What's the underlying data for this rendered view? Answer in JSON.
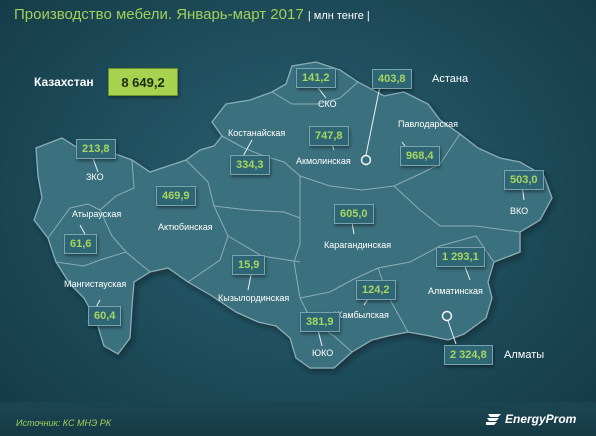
{
  "header": {
    "title": "Производство мебели. Январь-март 2017",
    "unit": "| млн тенге |"
  },
  "total": {
    "label": "Казахстан",
    "value": "8 649,2"
  },
  "cities": {
    "astana": {
      "label": "Астана",
      "value": "403,8"
    },
    "almaty": {
      "label": "Алматы",
      "value": "2 324,8"
    }
  },
  "regions": {
    "zko": {
      "label": "ЗКО",
      "value": "213,8"
    },
    "atyrau": {
      "label": "Атырауская",
      "value": "61,6"
    },
    "mangystau": {
      "label": "Мангистауская",
      "value": "60,4"
    },
    "aktobe": {
      "label": "Актюбинская",
      "value": "469,9"
    },
    "kostanay": {
      "label": "Костанайская",
      "value": "334,3"
    },
    "sko": {
      "label": "СКО",
      "value": "141,2"
    },
    "akmola": {
      "label": "Акмолинская",
      "value": "747,8"
    },
    "pavlodar": {
      "label": "Павлодарская",
      "value": "968,4"
    },
    "vko": {
      "label": "ВКО",
      "value": "503,0"
    },
    "karaganda": {
      "label": "Карагандинская",
      "value": "605,0"
    },
    "kyzylorda": {
      "label": "Кызылординская",
      "value": "15,9"
    },
    "zhambyl": {
      "label": "Жамбылская",
      "value": "124,2"
    },
    "almaty_reg": {
      "label": "Алматинская",
      "value": "1 293,1"
    },
    "yuko": {
      "label": "ЮКО",
      "value": "381,9"
    }
  },
  "footer": {
    "source": "Источник: КС МНЭ РК",
    "logo": "EnergyProm"
  },
  "colors": {
    "accent": "#a7d250",
    "value_text": "#a6d660",
    "map_fill": "#3b6f7e",
    "border": "#88aeb6"
  },
  "icons": {
    "city_marker": "circle-marker-icon",
    "logo_mark": "energyprom-logo-icon"
  }
}
